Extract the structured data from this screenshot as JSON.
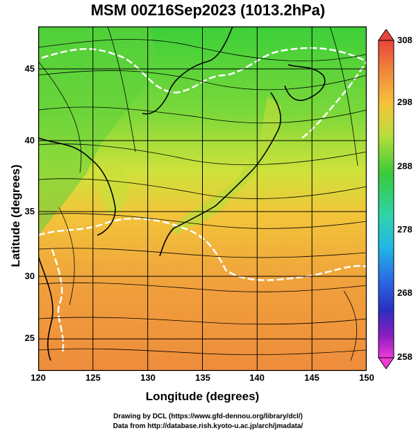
{
  "title": "MSM 00Z16Sep2023 (1013.2hPa)",
  "axes": {
    "xlabel": "Longitude (degrees)",
    "ylabel": "Latitude  (degrees)",
    "x_ticks": [
      "120",
      "125",
      "130",
      "135",
      "140",
      "145",
      "150"
    ],
    "y_ticks": [
      "25",
      "30",
      "35",
      "40",
      "45"
    ]
  },
  "colorbar": {
    "ticks": [
      "308",
      "298",
      "288",
      "278",
      "268",
      "258"
    ],
    "colors": [
      "#e8443a",
      "#f08a3c",
      "#f6c33a",
      "#e8e23b",
      "#a4dd3a",
      "#39c93a",
      "#2fd4a8",
      "#20b8e6",
      "#2a6ee6",
      "#2a2fc0",
      "#6a1cc0",
      "#c21cc0",
      "#ee3bd8"
    ]
  },
  "credits": {
    "line1": "Drawing by DCL (https://www.gfd-dennou.org/library/dcl/)",
    "line2": "Data from http://database.rish.kyoto-u.ac.jp/arch/jmadata/"
  }
}
